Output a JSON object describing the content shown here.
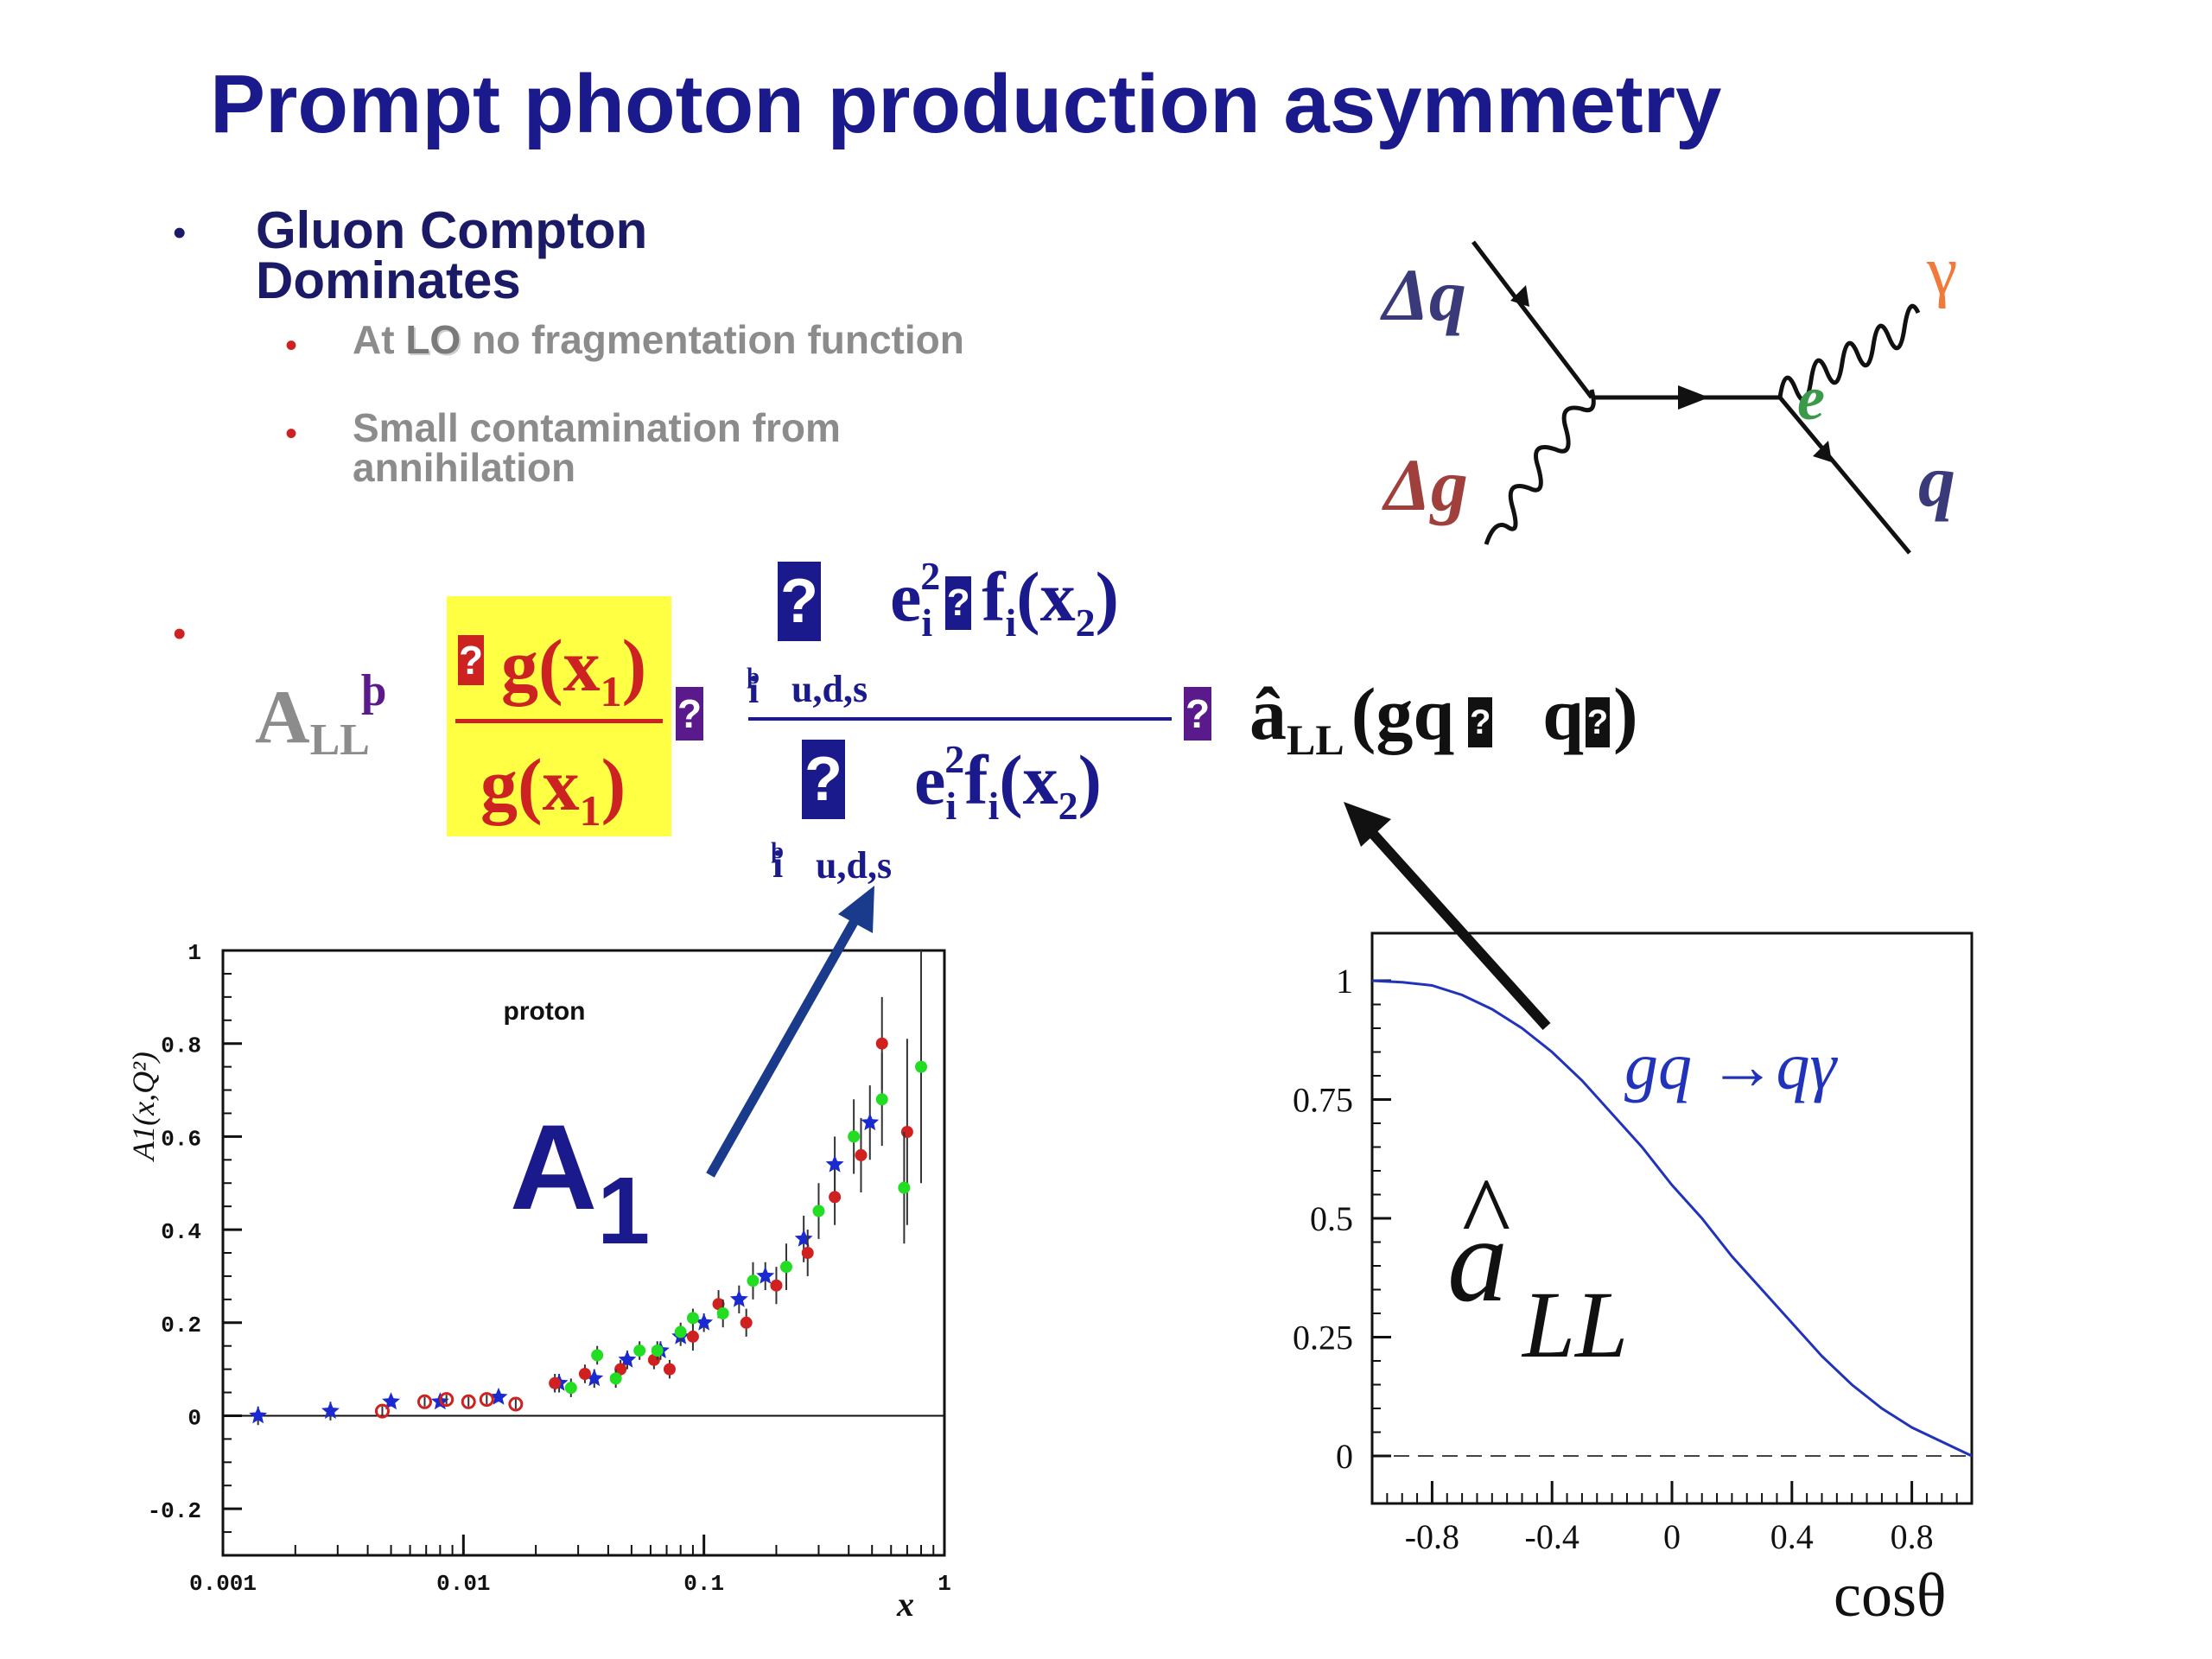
{
  "slide": {
    "title": "Prompt photon production asymmetry",
    "bullets": [
      {
        "text": "Gluon Compton Dominates",
        "sub_bullets": [
          {
            "prefix": "At ",
            "em": "LO",
            "suffix": " no fragmentation function"
          },
          {
            "text": "Small contamination from annihilation"
          }
        ]
      }
    ]
  },
  "formula": {
    "lhs_main": "A",
    "lhs_sub": "LL",
    "lhs_sup": "þ",
    "glitch": "?",
    "dg_num": "g(x",
    "dg_num_sub": "1",
    "dg_num_close": ")",
    "g_den": "g(x",
    "g_den_sub": "1",
    "g_den_close": ")",
    "sum_index": "i",
    "sum_index_mark": "þ",
    "sum_range": "u,d,s",
    "num_e": "e",
    "num_e_sub": "i",
    "num_e_sup": "2",
    "num_f": "f",
    "num_f_sub": "i",
    "num_x": "(x",
    "num_x_sub": "2",
    "num_close": ")",
    "aLL": "â",
    "aLL_sub": "LL",
    "process_open": "(gq",
    "process_q": "q",
    "process_close": ")"
  },
  "feynman": {
    "delta_q": "Δq",
    "delta_g": "Δg",
    "gamma": "γ",
    "e_label": "e",
    "q_label": "q"
  },
  "chart_data": [
    {
      "type": "scatter",
      "title": "",
      "annotation": "proton",
      "xlabel": "x",
      "ylabel": "A1(x,Q²)",
      "xscale": "log",
      "xlim": [
        0.001,
        1
      ],
      "ylim": [
        -0.3,
        1
      ],
      "xticks": [
        "0.001",
        "0.01",
        "0.1",
        "1"
      ],
      "yticks": [
        "-0.2",
        "0",
        "0.2",
        "0.4",
        "0.6",
        "0.8",
        "1"
      ],
      "overlay_label": "A",
      "overlay_label_sub": "1",
      "series": [
        {
          "marker": "star",
          "color": "#1a2ad0",
          "x": [
            0.0014,
            0.0028,
            0.005,
            0.008,
            0.014,
            0.025,
            0.035,
            0.048,
            0.066,
            0.08,
            0.1,
            0.14,
            0.18,
            0.26,
            0.35,
            0.49
          ],
          "y": [
            0.0,
            0.01,
            0.03,
            0.03,
            0.04,
            0.07,
            0.08,
            0.12,
            0.14,
            0.17,
            0.2,
            0.25,
            0.3,
            0.38,
            0.54,
            0.63
          ],
          "err": [
            0.02,
            0.02,
            0.01,
            0.01,
            0.01,
            0.02,
            0.02,
            0.02,
            0.02,
            0.02,
            0.02,
            0.03,
            0.03,
            0.05,
            0.06,
            0.08
          ]
        },
        {
          "marker": "circle-open",
          "color": "#d02020",
          "x": [
            0.0046,
            0.0069,
            0.0085,
            0.0105,
            0.0125,
            0.0165
          ],
          "y": [
            0.01,
            0.03,
            0.035,
            0.03,
            0.035,
            0.025
          ],
          "err": [
            0.01,
            0.01,
            0.01,
            0.01,
            0.01,
            0.01
          ]
        },
        {
          "marker": "dot",
          "color": "#d02020",
          "x": [
            0.024,
            0.032,
            0.045,
            0.062,
            0.072,
            0.09,
            0.115,
            0.15,
            0.2,
            0.27,
            0.35,
            0.45,
            0.55,
            0.7
          ],
          "y": [
            0.07,
            0.09,
            0.1,
            0.12,
            0.1,
            0.17,
            0.24,
            0.2,
            0.28,
            0.35,
            0.47,
            0.56,
            0.8,
            0.61
          ],
          "err": [
            0.02,
            0.02,
            0.02,
            0.02,
            0.02,
            0.03,
            0.03,
            0.03,
            0.04,
            0.05,
            0.06,
            0.08,
            0.1,
            0.2
          ]
        },
        {
          "marker": "dot",
          "color": "#22dd22",
          "x": [
            0.028,
            0.036,
            0.043,
            0.054,
            0.064,
            0.08,
            0.09,
            0.12,
            0.16,
            0.22,
            0.3,
            0.42,
            0.55,
            0.68,
            0.8
          ],
          "y": [
            0.06,
            0.13,
            0.08,
            0.14,
            0.14,
            0.18,
            0.21,
            0.22,
            0.29,
            0.32,
            0.44,
            0.6,
            0.68,
            0.49,
            0.75
          ],
          "err": [
            0.02,
            0.02,
            0.02,
            0.02,
            0.02,
            0.02,
            0.02,
            0.03,
            0.04,
            0.05,
            0.06,
            0.08,
            0.1,
            0.12,
            0.25
          ]
        }
      ]
    },
    {
      "type": "line",
      "title": "",
      "xlabel": "cosθ",
      "ylabel": "",
      "xlim": [
        -1,
        1
      ],
      "ylim": [
        -0.1,
        1.1
      ],
      "xticks": [
        "-0.8",
        "-0.4",
        "0",
        "0.4",
        "0.8"
      ],
      "yticks": [
        "0",
        "0.25",
        "0.5",
        "0.75",
        "1"
      ],
      "legend_label": "gq →qγ",
      "big_label": "a",
      "big_label_sub": "LL",
      "series": [
        {
          "name": "gq →qγ",
          "color": "#2233bb",
          "x": [
            -1,
            -0.9,
            -0.8,
            -0.7,
            -0.6,
            -0.5,
            -0.4,
            -0.3,
            -0.2,
            -0.1,
            0,
            0.1,
            0.2,
            0.3,
            0.4,
            0.5,
            0.6,
            0.7,
            0.8,
            0.9,
            1
          ],
          "y": [
            1.0,
            0.997,
            0.99,
            0.97,
            0.94,
            0.9,
            0.85,
            0.79,
            0.72,
            0.65,
            0.57,
            0.5,
            0.42,
            0.35,
            0.28,
            0.21,
            0.15,
            0.1,
            0.06,
            0.03,
            0.0
          ]
        }
      ],
      "reference_line": 0
    }
  ],
  "colors": {
    "title": "#1a1a8c",
    "bullet_text": "#1a1a66",
    "sub_text": "#8c8c8c",
    "bullet_red": "#cc2222",
    "highlight": "#ffff44",
    "formula_blue": "#1a1a8c",
    "formula_red": "#cc2222"
  }
}
